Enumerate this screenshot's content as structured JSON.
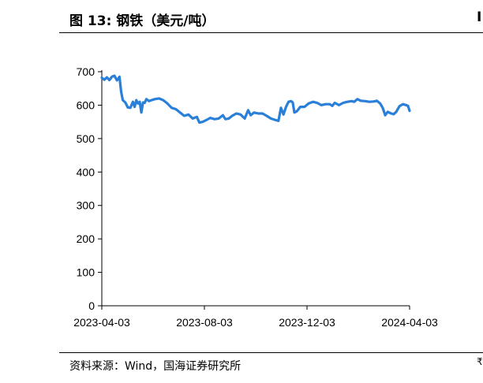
{
  "figure": {
    "title": "图 13:  钢铁（美元/吨）",
    "source": "资料来源：Wind，国海证券研究所",
    "edge_mark_top": "I",
    "edge_mark_bottom": "₹"
  },
  "chart_data": {
    "type": "line",
    "title": "钢铁（美元/吨）",
    "xlabel": "",
    "ylabel": "",
    "ylim": [
      0,
      700
    ],
    "yticks": [
      0,
      100,
      200,
      300,
      400,
      500,
      600,
      700
    ],
    "xticks": [
      "2023-04-03",
      "2023-08-03",
      "2023-12-03",
      "2024-04-03"
    ],
    "xlim": [
      "2023-04-03",
      "2024-04-03"
    ],
    "grid": false,
    "legend": "none",
    "color": "#2a7fd8",
    "series": [
      {
        "points": [
          [
            "2023-04-03",
            682
          ],
          [
            "2023-04-06",
            676
          ],
          [
            "2023-04-09",
            683
          ],
          [
            "2023-04-12",
            675
          ],
          [
            "2023-04-15",
            685
          ],
          [
            "2023-04-18",
            688
          ],
          [
            "2023-04-21",
            674
          ],
          [
            "2023-04-24",
            685
          ],
          [
            "2023-04-26",
            640
          ],
          [
            "2023-04-28",
            615
          ],
          [
            "2023-05-01",
            608
          ],
          [
            "2023-05-04",
            593
          ],
          [
            "2023-05-07",
            592
          ],
          [
            "2023-05-10",
            610
          ],
          [
            "2023-05-12",
            595
          ],
          [
            "2023-05-14",
            615
          ],
          [
            "2023-05-16",
            605
          ],
          [
            "2023-05-18",
            610
          ],
          [
            "2023-05-20",
            578
          ],
          [
            "2023-05-22",
            608
          ],
          [
            "2023-05-24",
            607
          ],
          [
            "2023-05-26",
            618
          ],
          [
            "2023-05-29",
            612
          ],
          [
            "2023-06-01",
            615
          ],
          [
            "2023-06-05",
            618
          ],
          [
            "2023-06-10",
            620
          ],
          [
            "2023-06-15",
            615
          ],
          [
            "2023-06-20",
            605
          ],
          [
            "2023-06-25",
            592
          ],
          [
            "2023-06-30",
            588
          ],
          [
            "2023-07-05",
            578
          ],
          [
            "2023-07-10",
            568
          ],
          [
            "2023-07-15",
            572
          ],
          [
            "2023-07-20",
            560
          ],
          [
            "2023-07-25",
            565
          ],
          [
            "2023-07-28",
            548
          ],
          [
            "2023-08-01",
            550
          ],
          [
            "2023-08-05",
            555
          ],
          [
            "2023-08-10",
            562
          ],
          [
            "2023-08-15",
            558
          ],
          [
            "2023-08-20",
            560
          ],
          [
            "2023-08-25",
            570
          ],
          [
            "2023-08-28",
            558
          ],
          [
            "2023-09-01",
            560
          ],
          [
            "2023-09-05",
            568
          ],
          [
            "2023-09-10",
            575
          ],
          [
            "2023-09-15",
            572
          ],
          [
            "2023-09-20",
            560
          ],
          [
            "2023-09-24",
            585
          ],
          [
            "2023-09-27",
            570
          ],
          [
            "2023-10-01",
            578
          ],
          [
            "2023-10-06",
            575
          ],
          [
            "2023-10-11",
            575
          ],
          [
            "2023-10-16",
            568
          ],
          [
            "2023-10-21",
            560
          ],
          [
            "2023-10-26",
            556
          ],
          [
            "2023-10-30",
            553
          ],
          [
            "2023-11-02",
            592
          ],
          [
            "2023-11-05",
            572
          ],
          [
            "2023-11-08",
            595
          ],
          [
            "2023-11-11",
            610
          ],
          [
            "2023-11-14",
            612
          ],
          [
            "2023-11-16",
            608
          ],
          [
            "2023-11-18",
            578
          ],
          [
            "2023-11-21",
            582
          ],
          [
            "2023-11-25",
            595
          ],
          [
            "2023-11-30",
            595
          ],
          [
            "2023-12-05",
            605
          ],
          [
            "2023-12-10",
            610
          ],
          [
            "2023-12-15",
            607
          ],
          [
            "2023-12-20",
            600
          ],
          [
            "2023-12-25",
            603
          ],
          [
            "2023-12-30",
            603
          ],
          [
            "2024-01-02",
            598
          ],
          [
            "2024-01-05",
            607
          ],
          [
            "2024-01-10",
            600
          ],
          [
            "2024-01-15",
            607
          ],
          [
            "2024-01-20",
            610
          ],
          [
            "2024-01-25",
            612
          ],
          [
            "2024-01-28",
            610
          ],
          [
            "2024-02-01",
            618
          ],
          [
            "2024-02-05",
            613
          ],
          [
            "2024-02-10",
            612
          ],
          [
            "2024-02-15",
            610
          ],
          [
            "2024-02-20",
            611
          ],
          [
            "2024-02-24",
            613
          ],
          [
            "2024-02-28",
            605
          ],
          [
            "2024-03-02",
            592
          ],
          [
            "2024-03-05",
            570
          ],
          [
            "2024-03-08",
            580
          ],
          [
            "2024-03-12",
            575
          ],
          [
            "2024-03-15",
            573
          ],
          [
            "2024-03-18",
            580
          ],
          [
            "2024-03-22",
            597
          ],
          [
            "2024-03-26",
            603
          ],
          [
            "2024-03-30",
            600
          ],
          [
            "2024-04-01",
            598
          ],
          [
            "2024-04-03",
            583
          ]
        ]
      }
    ]
  }
}
